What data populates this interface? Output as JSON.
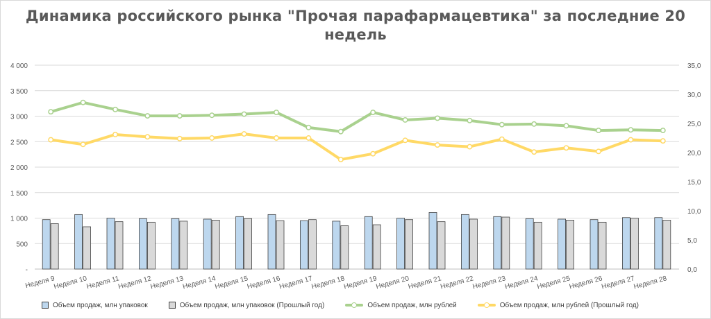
{
  "chart_data": {
    "type": "bar+line",
    "title": "Динамика российского рынка \"Прочая парафармацевтика\" за последние 20 недель",
    "categories": [
      "Неделя 9",
      "Неделя 10",
      "Неделя 11",
      "Неделя 12",
      "Неделя 13",
      "Неделя 14",
      "Неделя 15",
      "Неделя 16",
      "Неделя 17",
      "Неделя 18",
      "Неделя 19",
      "Неделя 20",
      "Неделя 21",
      "Неделя 22",
      "Неделя 23",
      "Неделя 24",
      "Неделя 25",
      "Неделя 26",
      "Неделя 27",
      "Неделя 28"
    ],
    "left_axis": {
      "ylim": [
        0,
        4000
      ],
      "ticks": [
        0,
        500,
        1000,
        1500,
        2000,
        2500,
        3000,
        3500,
        4000
      ],
      "tick_labels": [
        "-",
        "500",
        "1 000",
        "1 500",
        "2 000",
        "2 500",
        "3 000",
        "3 500",
        "4 000"
      ]
    },
    "right_axis": {
      "ylim": [
        0,
        35
      ],
      "ticks": [
        0,
        5,
        10,
        15,
        20,
        25,
        30,
        35
      ],
      "tick_labels": [
        "0,0",
        "5,0",
        "10,0",
        "15,0",
        "20,0",
        "25,0",
        "30,0",
        "35,0"
      ]
    },
    "series": [
      {
        "name": "Объем продаж, млн упаковок",
        "kind": "bar",
        "axis": "left",
        "color": "#bdd7ee",
        "values": [
          970,
          1070,
          1000,
          990,
          990,
          980,
          1030,
          1070,
          950,
          940,
          1030,
          1000,
          1110,
          1070,
          1030,
          990,
          980,
          970,
          1010,
          1010
        ]
      },
      {
        "name": "Объем продаж, млн упаковок (Прошлый год)",
        "kind": "bar",
        "axis": "left",
        "color": "#d9d9d9",
        "values": [
          890,
          830,
          930,
          920,
          940,
          960,
          990,
          950,
          970,
          850,
          870,
          970,
          930,
          980,
          1020,
          920,
          960,
          920,
          1000,
          960
        ]
      },
      {
        "name": "Объем продаж, млн рублей",
        "kind": "line",
        "axis": "right",
        "color": "#a9d18e",
        "values": [
          27.0,
          28.6,
          27.4,
          26.3,
          26.3,
          26.4,
          26.6,
          26.9,
          24.3,
          23.6,
          26.9,
          25.6,
          25.9,
          25.5,
          24.8,
          24.9,
          24.6,
          23.8,
          23.9,
          23.8
        ]
      },
      {
        "name": "Объем продаж, млн рублей (Прошлый год)",
        "kind": "line",
        "axis": "right",
        "color": "#ffd966",
        "values": [
          22.2,
          21.4,
          23.1,
          22.7,
          22.4,
          22.5,
          23.2,
          22.5,
          22.5,
          18.8,
          19.8,
          22.1,
          21.3,
          21.0,
          22.3,
          20.1,
          20.8,
          20.2,
          22.2,
          22.0
        ]
      }
    ]
  }
}
